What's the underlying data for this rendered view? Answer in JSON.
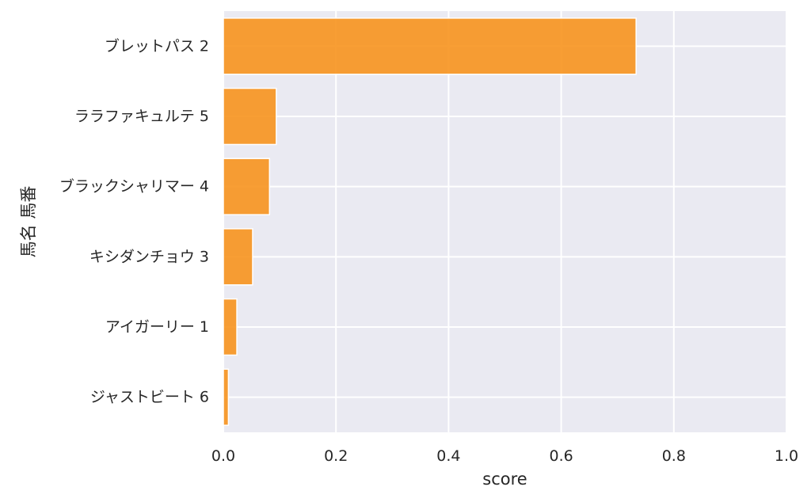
{
  "chart_data": {
    "type": "bar",
    "orientation": "horizontal",
    "categories": [
      "ブレットパス 2",
      "ララファキュルテ 5",
      "ブラックシャリマー 4",
      "キシダンチョウ 3",
      "アイガーリー 1",
      "ジャストビート 6"
    ],
    "values": [
      0.733,
      0.094,
      0.082,
      0.052,
      0.024,
      0.009
    ],
    "xlabel": "score",
    "ylabel": "馬名 馬番",
    "xlim": [
      0.0,
      1.0
    ],
    "xticks": [
      "0.0",
      "0.2",
      "0.4",
      "0.6",
      "0.8",
      "1.0"
    ],
    "grid": true,
    "colors": {
      "bar": "#f7931e",
      "bar_edge": "#ffffff",
      "plot_background": "#eaeaf2",
      "grid": "#ffffff"
    }
  }
}
